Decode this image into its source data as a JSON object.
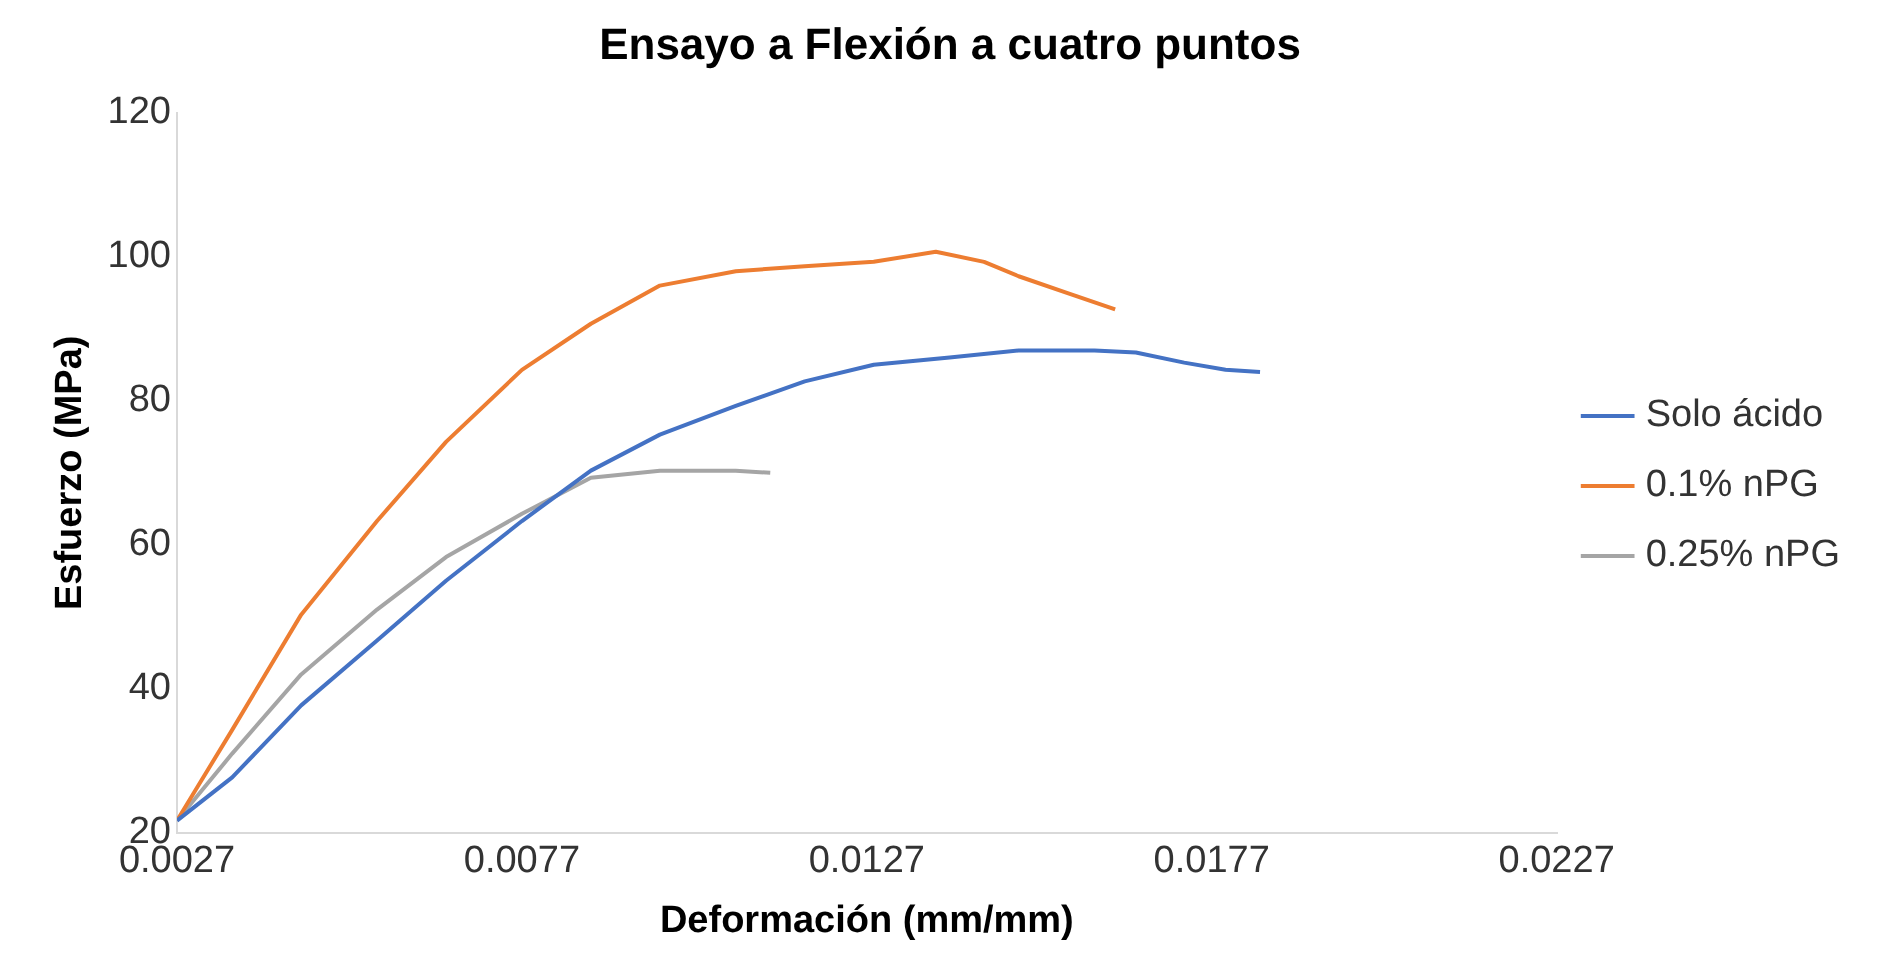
{
  "chart_data": {
    "type": "line",
    "title": "Ensayo a Flexión a cuatro puntos",
    "xlabel": "Deformación (mm/mm)",
    "ylabel": "Esfuerzo (MPa)",
    "xlim": [
      0.0027,
      0.0227
    ],
    "xticks": [
      0.0027,
      0.0077,
      0.0127,
      0.0177,
      0.0227
    ],
    "ylim": [
      20,
      120
    ],
    "yticks": [
      20,
      40,
      60,
      80,
      100,
      120
    ],
    "grid": false,
    "legend": "right",
    "marker": "none",
    "line_style": "solid",
    "series": [
      {
        "name": "Solo ácido",
        "color": "#4472c4",
        "x": [
          0.0027,
          0.0035,
          0.0045,
          0.0056,
          0.0066,
          0.0077,
          0.0087,
          0.0097,
          0.0108,
          0.0118,
          0.0128,
          0.0139,
          0.0149,
          0.016,
          0.0166,
          0.0173,
          0.0179,
          0.0184
        ],
        "values": [
          21.7,
          27.7,
          37.7,
          46.7,
          55,
          63.3,
          70.3,
          75.3,
          79.3,
          82.7,
          85,
          86,
          87,
          87,
          86.7,
          85.3,
          84.3,
          84
        ]
      },
      {
        "name": "0.1% nPG",
        "color": "#ed7d31",
        "x": [
          0.0027,
          0.0035,
          0.0045,
          0.0056,
          0.0066,
          0.0077,
          0.0087,
          0.0097,
          0.0108,
          0.0118,
          0.0128,
          0.0137,
          0.0144,
          0.0149,
          0.0156,
          0.0163
        ],
        "values": [
          21.7,
          34.3,
          50.3,
          63.3,
          74.3,
          84.3,
          90.7,
          96,
          98,
          98.7,
          99.3,
          100.7,
          99.3,
          97.3,
          95,
          92.7
        ]
      },
      {
        "name": "0.25% nPG",
        "color": "#a5a5a5",
        "x": [
          0.0027,
          0.0035,
          0.0045,
          0.0056,
          0.0066,
          0.0077,
          0.0087,
          0.0097,
          0.0108,
          0.0113
        ],
        "values": [
          21.7,
          31,
          42,
          51,
          58.3,
          64.3,
          69.3,
          70.3,
          70.3,
          70
        ]
      }
    ]
  }
}
